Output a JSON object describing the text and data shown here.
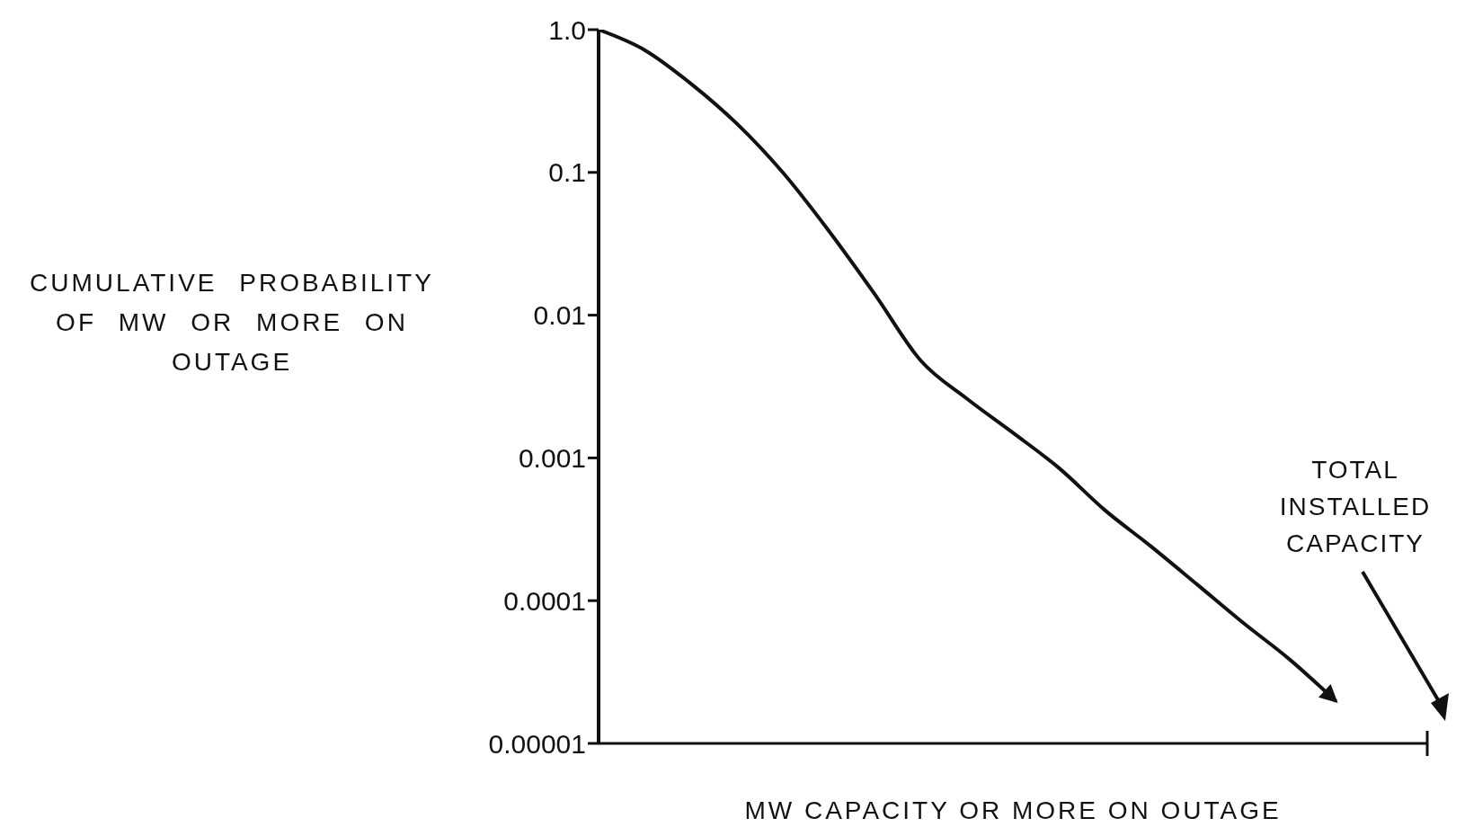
{
  "chart_data": {
    "type": "line",
    "xlabel": "MW CAPACITY OR MORE ON OUTAGE",
    "ylabel": "CUMULATIVE PROBABILITY OF MW OR MORE ON OUTAGE",
    "categories": [
      null,
      null,
      null,
      null,
      null,
      null,
      null,
      null,
      null,
      null,
      null,
      null,
      null,
      null,
      null,
      null,
      null,
      null,
      null
    ],
    "series": [
      {
        "color": "#111111",
        "values": [
          1.0,
          0.72,
          0.42,
          0.22,
          0.1,
          0.039,
          0.014,
          0.0048,
          0.0026,
          0.0015,
          0.00085,
          0.00043,
          0.00024,
          0.00013,
          7e-05,
          3.9e-05,
          2e-05,
          null,
          null
        ]
      }
    ],
    "log": "y",
    "ylim": [
      1e-05,
      1
    ],
    "yticks": [
      {
        "value": 1,
        "label": "1.0"
      },
      0.1,
      0.01,
      0.001,
      0.0001,
      {
        "value": 1e-05,
        "label": "0.00001"
      }
    ],
    "tick_labels": "y",
    "annotations": [
      "TOTAL INSTALLED CAPACITY"
    ]
  }
}
